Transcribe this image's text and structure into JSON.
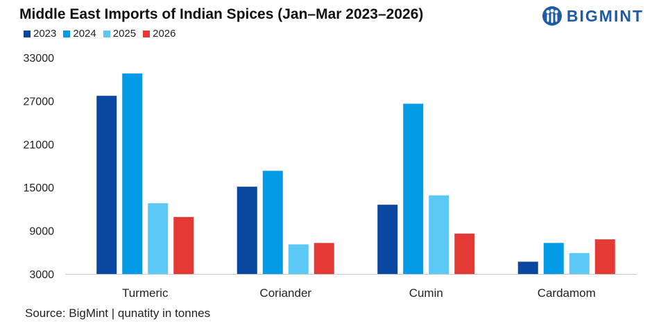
{
  "brand": {
    "name": "BIGMINT",
    "color": "#1f5aa6"
  },
  "source_note": "Source: BigMint | qunatity in tonnes",
  "chart_data": {
    "type": "bar",
    "title": "Middle East Imports of Indian Spices (Jan–Mar 2023–2026)",
    "xlabel": "",
    "ylabel": "",
    "categories": [
      "Turmeric",
      "Coriander",
      "Cumin",
      "Cardamom"
    ],
    "series": [
      {
        "name": "2023",
        "color": "#0a47a1",
        "values": [
          27700,
          15100,
          12600,
          4700
        ]
      },
      {
        "name": "2024",
        "color": "#039be5",
        "values": [
          30800,
          17300,
          26600,
          7300
        ]
      },
      {
        "name": "2025",
        "color": "#5bc8f5",
        "values": [
          12800,
          7100,
          13900,
          5900
        ]
      },
      {
        "name": "2026",
        "color": "#e53935",
        "values": [
          10900,
          7300,
          8600,
          7800
        ]
      }
    ],
    "ylim": [
      3000,
      33000
    ],
    "yticks": [
      3000,
      9000,
      15000,
      21000,
      27000,
      33000
    ],
    "grid": false,
    "legend_position": "top-left"
  }
}
